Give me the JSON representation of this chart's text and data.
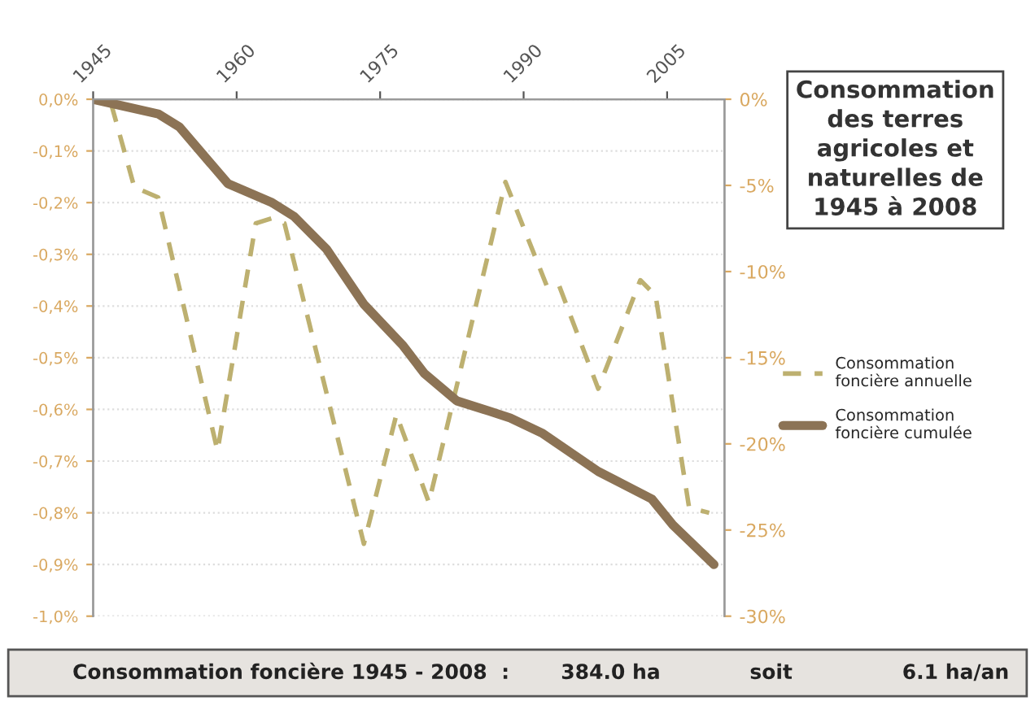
{
  "chart_data": {
    "type": "line",
    "title": "Consommation\ndes terres\nagricoles et\nnaturelles de\n1945 à 2008",
    "series": [
      {
        "name": "Consommation\nfoncière annuelle",
        "color": "#bdb070",
        "line_style": "dashed",
        "axis": "y",
        "x": [
          1946.9,
          1949.3,
          1951.8,
          1958.0,
          1962.0,
          1963.7,
          1965.0,
          1973.3,
          1976.7,
          1980.1,
          1988.1,
          1992.4,
          1993.7,
          1997.8,
          2002.2,
          2003.8,
          2007.3,
          2009.4
        ],
        "values": [
          -0.01,
          -0.17,
          -0.19,
          -0.68,
          -0.24,
          -0.23,
          -0.24,
          -0.86,
          -0.61,
          -0.78,
          -0.16,
          -0.36,
          -0.36,
          -0.56,
          -0.35,
          -0.38,
          -0.79,
          -0.8
        ]
      },
      {
        "name": "Consommation\nfoncière cumulée",
        "color": "#8c7355",
        "line_style": "solid",
        "axis": "y2",
        "x": [
          1945,
          1951.8,
          1954,
          1959.1,
          1963.7,
          1966,
          1969.4,
          1973.3,
          1977.4,
          1979.6,
          1983,
          1986.4,
          1988.6,
          1992,
          1997.8,
          2003.4,
          2005.6,
          2009.9
        ],
        "values": [
          0,
          -0.85,
          -1.6,
          -4.9,
          -6.0,
          -6.8,
          -8.7,
          -11.9,
          -14.3,
          -15.9,
          -17.5,
          -18.1,
          -18.5,
          -19.4,
          -21.6,
          -23.2,
          -24.7,
          -27.0
        ]
      }
    ],
    "xlim": [
      1945,
      2011
    ],
    "xticks": [
      1945,
      1960,
      1975,
      1990,
      2005
    ],
    "ylim": [
      -1.0,
      0
    ],
    "yticks": [
      {
        "value": 0,
        "label": "0,0%"
      },
      {
        "value": -0.1,
        "label": "-0,1%"
      },
      {
        "value": -0.2,
        "label": "-0,2%"
      },
      {
        "value": -0.3,
        "label": "-0,3%"
      },
      {
        "value": -0.4,
        "label": "-0,4%"
      },
      {
        "value": -0.5,
        "label": "-0,5%"
      },
      {
        "value": -0.6,
        "label": "-0,6%"
      },
      {
        "value": -0.7,
        "label": "-0,7%"
      },
      {
        "value": -0.8,
        "label": "-0,8%"
      },
      {
        "value": -0.9,
        "label": "-0,9%"
      },
      {
        "value": -1.0,
        "label": "-1,0%"
      }
    ],
    "y2lim": [
      -30,
      0
    ],
    "y2ticks": [
      {
        "value": 0,
        "label": "0%"
      },
      {
        "value": -5,
        "label": "-5%"
      },
      {
        "value": -10,
        "label": "-10%"
      },
      {
        "value": -15,
        "label": "-15%"
      },
      {
        "value": -20,
        "label": "-20%"
      },
      {
        "value": -25,
        "label": "-25%"
      },
      {
        "value": -30,
        "label": "-30%"
      }
    ],
    "grid": "y",
    "legend": "right",
    "annotations": [
      "Consommation foncière 1945 - 2008  :",
      "384.0 ha",
      "soit",
      "6.1 ha/an"
    ]
  }
}
